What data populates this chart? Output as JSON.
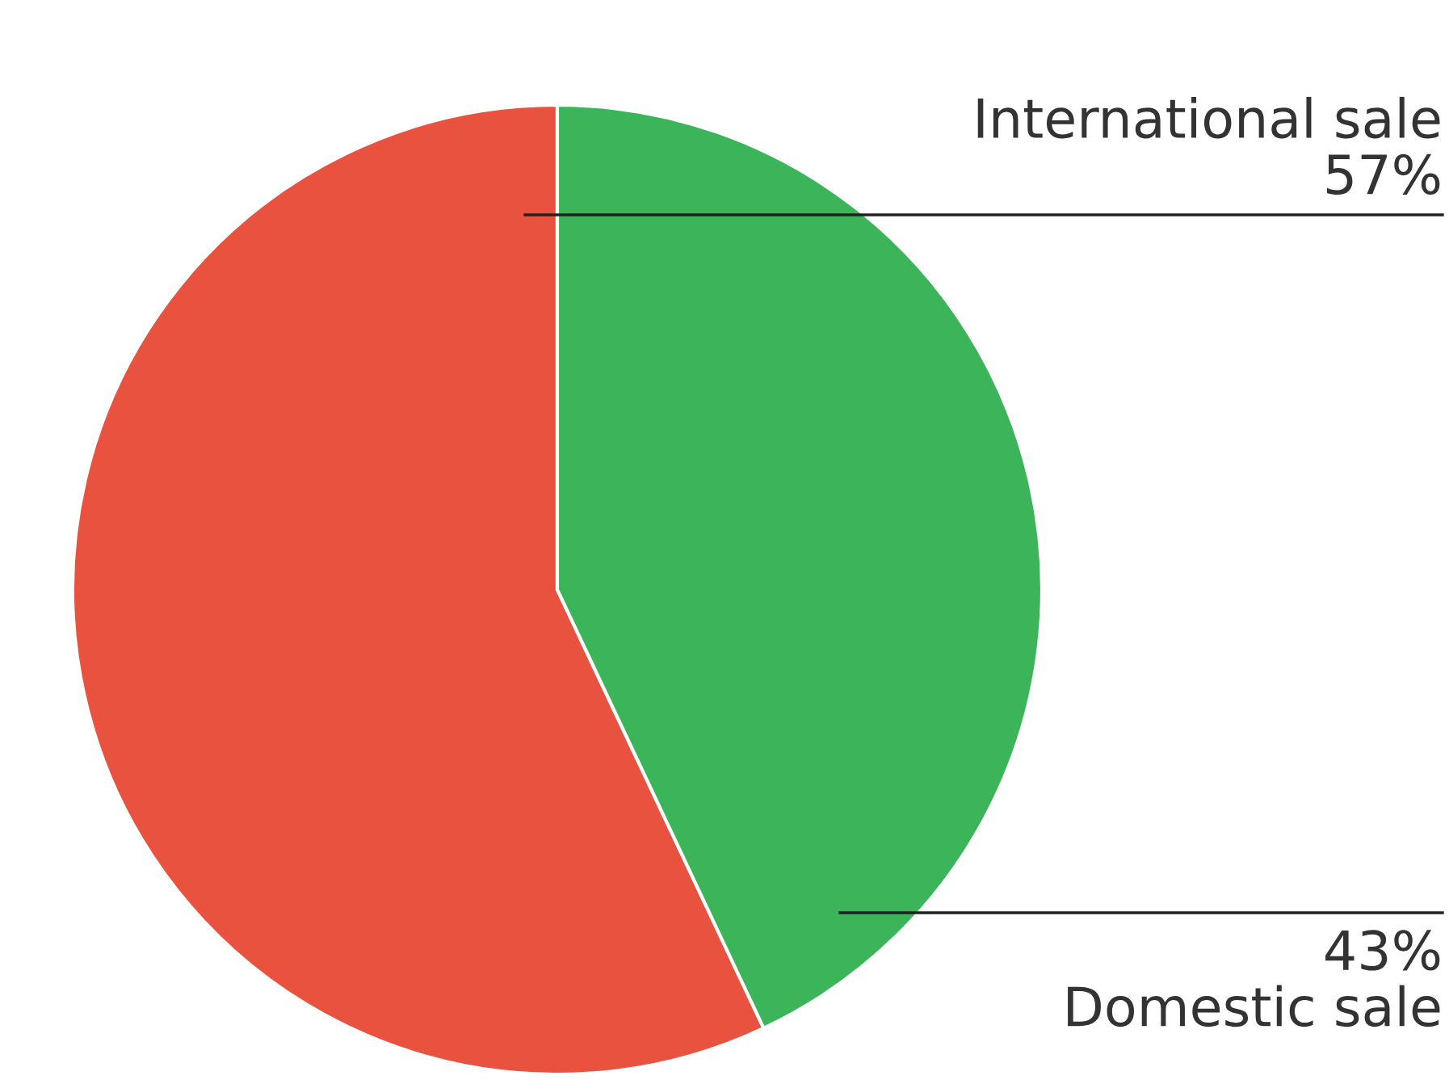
{
  "chart_data": {
    "type": "pie",
    "categories": [
      "International sale",
      "Domestic sale"
    ],
    "values": [
      57,
      43
    ],
    "value_labels": [
      "57%",
      "43%"
    ],
    "colors": [
      "#e8523f",
      "#3cb55a"
    ],
    "legend": false
  }
}
